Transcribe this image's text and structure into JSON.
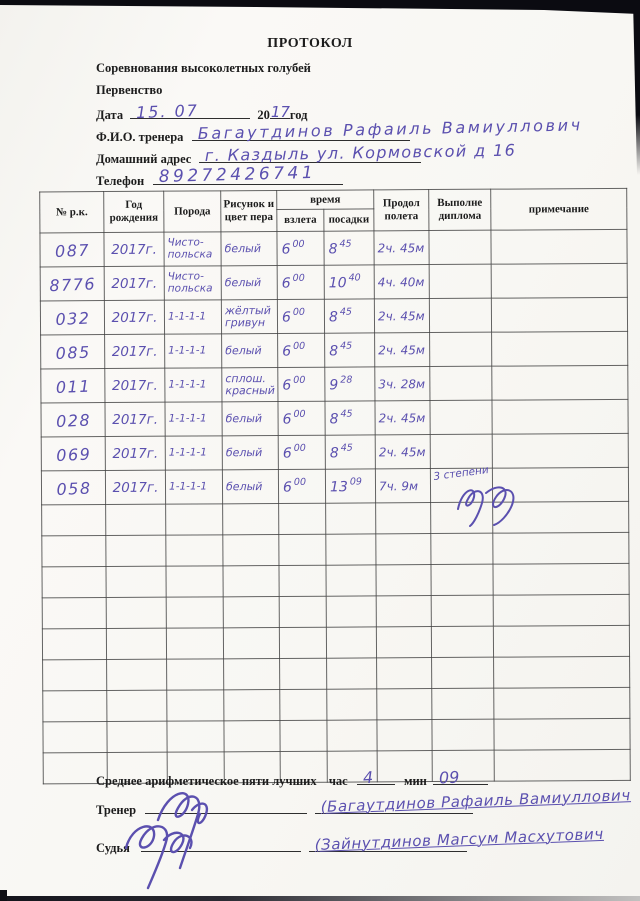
{
  "colors": {
    "ink": "#5b50af",
    "paper": "#f8f7f4",
    "scanner_bed": "#0b0b11"
  },
  "header": {
    "title": "ПРОТОКОЛ",
    "subtitle": "Соревнования высоколетных голубей",
    "championship": "Первенство",
    "date_label": "Дата",
    "date_value": "15. 07",
    "year_prefix": "20",
    "year_value": "17",
    "year_suffix": "год",
    "trainer_label": "Ф.И.О. тренера",
    "trainer_value": "Багаутдинов Рафаиль Вамиуллович",
    "address_label": "Домашний адрес",
    "address_value": "г. Каздыль  ул. Кормовской  д 16",
    "phone_label": "Телефон",
    "phone_value": "89272426741"
  },
  "table": {
    "headers": {
      "col_rk": "№ р.к.",
      "col_year": "Год рождения",
      "col_breed": "Порода",
      "col_pattern": "Рисунок и цвет пера",
      "col_time": "время",
      "col_takeoff": "взлета",
      "col_landing": "посадки",
      "col_duration": "Продол полета",
      "col_diploma": "Выполне диплома",
      "col_note": "примечание"
    },
    "rows": [
      {
        "rk": "087",
        "year": "2017г.",
        "breed": [
          "Чисто-",
          "польска"
        ],
        "pattern": [
          "белый"
        ],
        "takeoff": [
          "6",
          "00"
        ],
        "landing": [
          "8",
          "45"
        ],
        "duration": "2ч. 45м",
        "diploma": [],
        "note": ""
      },
      {
        "rk": "8776",
        "year": "2017г.",
        "breed": [
          "Чисто-",
          "польска"
        ],
        "pattern": [
          "белый"
        ],
        "takeoff": [
          "6",
          "00"
        ],
        "landing": [
          "10",
          "40"
        ],
        "duration": "4ч. 40м",
        "diploma": [],
        "note": ""
      },
      {
        "rk": "032",
        "year": "2017г.",
        "breed": [
          "1-1-1-1"
        ],
        "pattern": [
          "жёлтый",
          "гривун"
        ],
        "takeoff": [
          "6",
          "00"
        ],
        "landing": [
          "8",
          "45"
        ],
        "duration": "2ч. 45м",
        "diploma": [],
        "note": ""
      },
      {
        "rk": "085",
        "year": "2017г.",
        "breed": [
          "1-1-1-1"
        ],
        "pattern": [
          "белый"
        ],
        "takeoff": [
          "6",
          "00"
        ],
        "landing": [
          "8",
          "45"
        ],
        "duration": "2ч. 45м",
        "diploma": [],
        "note": ""
      },
      {
        "rk": "011",
        "year": "2017г.",
        "breed": [
          "1-1-1-1"
        ],
        "pattern": [
          "сплош.",
          "красный"
        ],
        "takeoff": [
          "6",
          "00"
        ],
        "landing": [
          "9",
          "28"
        ],
        "duration": "3ч. 28м",
        "diploma": [],
        "note": ""
      },
      {
        "rk": "028",
        "year": "2017г.",
        "breed": [
          "1-1-1-1"
        ],
        "pattern": [
          "белый"
        ],
        "takeoff": [
          "6",
          "00"
        ],
        "landing": [
          "8",
          "45"
        ],
        "duration": "2ч. 45м",
        "diploma": [],
        "note": ""
      },
      {
        "rk": "069",
        "year": "2017г.",
        "breed": [
          "1-1-1-1"
        ],
        "pattern": [
          "белый"
        ],
        "takeoff": [
          "6",
          "00"
        ],
        "landing": [
          "8",
          "45"
        ],
        "duration": "2ч. 45м",
        "diploma": [],
        "note": ""
      },
      {
        "rk": "058",
        "year": "2017г.",
        "breed": [
          "1-1-1-1"
        ],
        "pattern": [
          "белый"
        ],
        "takeoff": [
          "6",
          "00"
        ],
        "landing": [
          "13",
          "09"
        ],
        "duration": "7ч. 9м",
        "diploma": [
          "3 степени"
        ],
        "note": ""
      }
    ],
    "empty_row_count": 9
  },
  "footer": {
    "average_label": "Среднее арифметическое пяти лучших",
    "hour_label": "час",
    "hour_value": "4",
    "min_label": "мин",
    "min_value": "09",
    "trainer_label": "Тренер",
    "trainer_name": "(Багаутдинов Рафаиль Вамиуллович",
    "judge_label": "Судья",
    "judge_name": "(Зайнутдинов Магсум Масхутович"
  }
}
